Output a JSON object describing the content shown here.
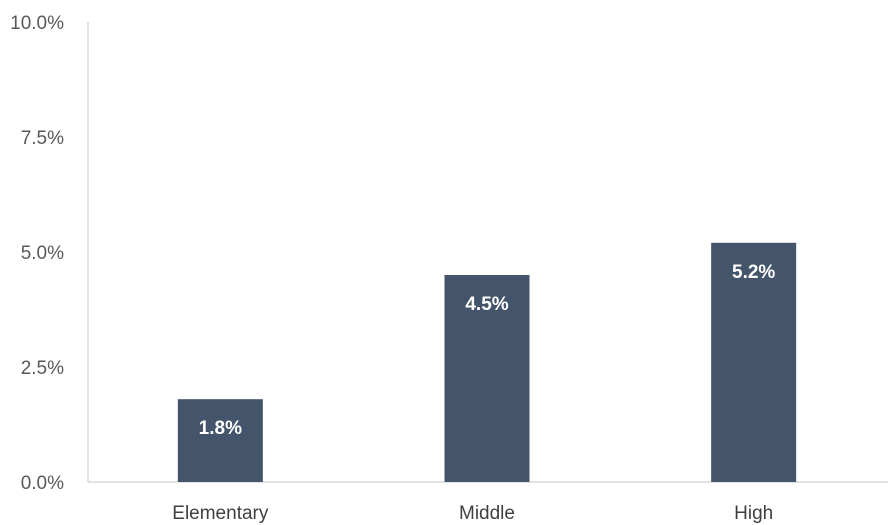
{
  "chart_data": {
    "type": "bar",
    "title": "",
    "xlabel": "",
    "ylabel": "",
    "categories": [
      "Elementary",
      "Middle",
      "High"
    ],
    "values": [
      1.8,
      4.5,
      5.2
    ],
    "data_labels": [
      "1.8%",
      "4.5%",
      "5.2%"
    ],
    "ylim": [
      0,
      10
    ],
    "y_ticks": [
      0,
      2.5,
      5,
      7.5,
      10
    ],
    "y_tick_labels": [
      "0.0%",
      "2.5%",
      "5.0%",
      "7.5%",
      "10.0%"
    ],
    "grid": false,
    "legend": "none",
    "bar_color": "#44546A",
    "axis_color": "#D9D9D9"
  }
}
